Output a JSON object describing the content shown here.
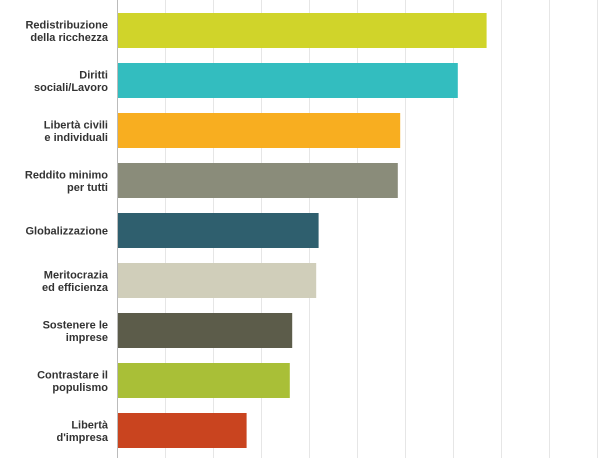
{
  "chart_data": {
    "type": "bar",
    "orientation": "horizontal",
    "categories": [
      [
        "Redistribuzione",
        "della ricchezza"
      ],
      [
        "Diritti",
        "sociali/Lavoro"
      ],
      [
        "Libertà civili",
        "e individuali"
      ],
      [
        "Reddito minimo",
        "per tutti"
      ],
      [
        "Globalizzazione"
      ],
      [
        "Meritocrazia",
        "ed efficienza"
      ],
      [
        "Sostenere le",
        "imprese"
      ],
      [
        "Contrastare il",
        "populismo"
      ],
      [
        "Libertà",
        "d'impresa"
      ]
    ],
    "values": [
      77,
      71,
      59,
      58.5,
      42,
      41.5,
      36.5,
      36,
      27
    ],
    "colors": [
      "#d0d42a",
      "#33bdbf",
      "#f8ae20",
      "#8a8c7a",
      "#2f5f6e",
      "#d0ceba",
      "#5c5c4a",
      "#a9bf37",
      "#c9441f"
    ],
    "xlim": [
      0,
      100
    ],
    "grid": true,
    "grid_step": 10,
    "tick_labels_shown": false,
    "title": "",
    "xlabel": "",
    "ylabel": ""
  }
}
